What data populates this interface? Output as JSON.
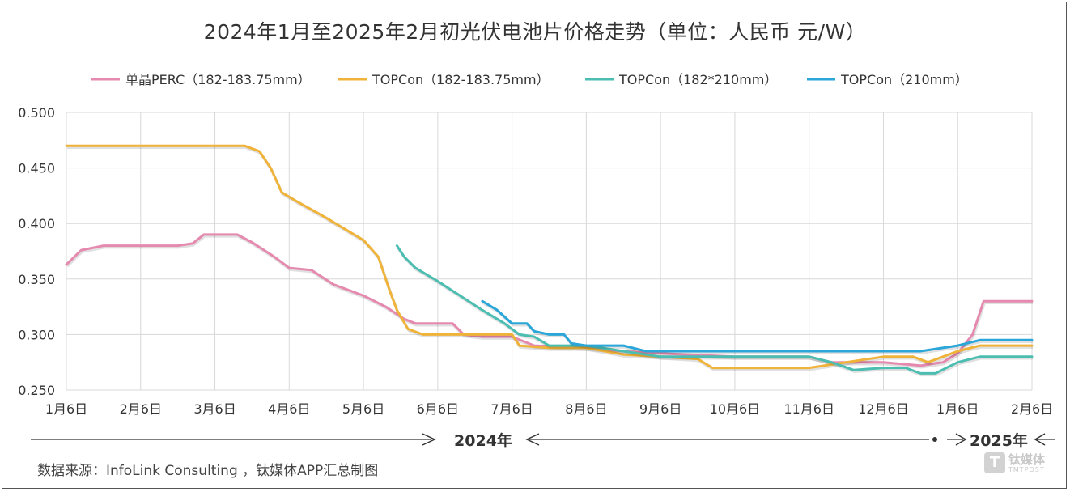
{
  "chart_data": {
    "type": "line",
    "title": "2024年1月至2025年2月初光伏电池片价格走势（单位：人民币 元/W）",
    "xlabel": "",
    "ylabel": "",
    "ylim": [
      0.25,
      0.5
    ],
    "yticks": [
      "0.250",
      "0.300",
      "0.350",
      "0.400",
      "0.450",
      "0.500"
    ],
    "ytick_values": [
      0.25,
      0.3,
      0.35,
      0.4,
      0.45,
      0.5
    ],
    "categories": [
      "1月6日",
      "2月6日",
      "3月6日",
      "4月6日",
      "5月6日",
      "6月6日",
      "7月6日",
      "8月6日",
      "9月6日",
      "10月6日",
      "11月6日",
      "12月6日",
      "1月6日",
      "2月6日"
    ],
    "grid": true,
    "legend_position": "top",
    "series": [
      {
        "name": "单晶PERC（182-183.75mm）",
        "color": "#e58aae",
        "points": [
          [
            0,
            0.363
          ],
          [
            0.2,
            0.376
          ],
          [
            0.5,
            0.38
          ],
          [
            1,
            0.38
          ],
          [
            1.5,
            0.38
          ],
          [
            1.7,
            0.382
          ],
          [
            1.85,
            0.39
          ],
          [
            2,
            0.39
          ],
          [
            2.3,
            0.39
          ],
          [
            2.5,
            0.383
          ],
          [
            2.8,
            0.37
          ],
          [
            3,
            0.36
          ],
          [
            3.3,
            0.358
          ],
          [
            3.6,
            0.345
          ],
          [
            4,
            0.335
          ],
          [
            4.3,
            0.325
          ],
          [
            4.55,
            0.314
          ],
          [
            4.7,
            0.31
          ],
          [
            5,
            0.31
          ],
          [
            5.2,
            0.31
          ],
          [
            5.35,
            0.3
          ],
          [
            5.6,
            0.298
          ],
          [
            6,
            0.298
          ],
          [
            6.3,
            0.29
          ],
          [
            7,
            0.288
          ],
          [
            7.5,
            0.285
          ],
          [
            8,
            0.283
          ],
          [
            9,
            0.28
          ],
          [
            10,
            0.28
          ],
          [
            10.3,
            0.275
          ],
          [
            11,
            0.275
          ],
          [
            11.5,
            0.272
          ],
          [
            11.8,
            0.275
          ],
          [
            12,
            0.283
          ],
          [
            12.2,
            0.3
          ],
          [
            12.35,
            0.33
          ],
          [
            12.6,
            0.33
          ],
          [
            13,
            0.33
          ]
        ]
      },
      {
        "name": "TOPCon（182-183.75mm）",
        "color": "#f0b33a",
        "points": [
          [
            0,
            0.47
          ],
          [
            1,
            0.47
          ],
          [
            2,
            0.47
          ],
          [
            2.4,
            0.47
          ],
          [
            2.6,
            0.465
          ],
          [
            2.75,
            0.45
          ],
          [
            2.9,
            0.428
          ],
          [
            3.1,
            0.42
          ],
          [
            3.5,
            0.405
          ],
          [
            3.8,
            0.393
          ],
          [
            4,
            0.385
          ],
          [
            4.2,
            0.37
          ],
          [
            4.35,
            0.34
          ],
          [
            4.45,
            0.322
          ],
          [
            4.6,
            0.305
          ],
          [
            4.8,
            0.3
          ],
          [
            5,
            0.3
          ],
          [
            5.5,
            0.3
          ],
          [
            6,
            0.3
          ],
          [
            6.1,
            0.29
          ],
          [
            6.5,
            0.288
          ],
          [
            7,
            0.288
          ],
          [
            7.5,
            0.282
          ],
          [
            8,
            0.28
          ],
          [
            8.5,
            0.278
          ],
          [
            8.7,
            0.27
          ],
          [
            9,
            0.27
          ],
          [
            10,
            0.27
          ],
          [
            10.5,
            0.275
          ],
          [
            11,
            0.28
          ],
          [
            11.4,
            0.28
          ],
          [
            11.6,
            0.275
          ],
          [
            12,
            0.285
          ],
          [
            12.3,
            0.29
          ],
          [
            13,
            0.29
          ]
        ]
      },
      {
        "name": "TOPCon（182*210mm）",
        "color": "#4bbdb1",
        "points": [
          [
            4.45,
            0.38
          ],
          [
            4.55,
            0.37
          ],
          [
            4.7,
            0.36
          ],
          [
            5,
            0.348
          ],
          [
            5.3,
            0.335
          ],
          [
            5.6,
            0.322
          ],
          [
            5.9,
            0.31
          ],
          [
            6.1,
            0.3
          ],
          [
            6.3,
            0.298
          ],
          [
            6.5,
            0.29
          ],
          [
            7,
            0.29
          ],
          [
            7.5,
            0.285
          ],
          [
            8,
            0.28
          ],
          [
            9,
            0.28
          ],
          [
            10,
            0.28
          ],
          [
            10.3,
            0.275
          ],
          [
            10.6,
            0.268
          ],
          [
            11,
            0.27
          ],
          [
            11.3,
            0.27
          ],
          [
            11.5,
            0.265
          ],
          [
            11.7,
            0.265
          ],
          [
            12,
            0.275
          ],
          [
            12.3,
            0.28
          ],
          [
            13,
            0.28
          ]
        ]
      },
      {
        "name": "TOPCon（210mm）",
        "color": "#2aa7d8",
        "points": [
          [
            5.6,
            0.33
          ],
          [
            5.8,
            0.322
          ],
          [
            6,
            0.31
          ],
          [
            6.2,
            0.31
          ],
          [
            6.3,
            0.303
          ],
          [
            6.5,
            0.3
          ],
          [
            6.7,
            0.3
          ],
          [
            6.8,
            0.292
          ],
          [
            7,
            0.29
          ],
          [
            7.5,
            0.29
          ],
          [
            7.8,
            0.285
          ],
          [
            8,
            0.285
          ],
          [
            9,
            0.285
          ],
          [
            10,
            0.285
          ],
          [
            11,
            0.285
          ],
          [
            11.5,
            0.285
          ],
          [
            12,
            0.29
          ],
          [
            12.3,
            0.295
          ],
          [
            13,
            0.295
          ]
        ]
      }
    ],
    "year_labels": [
      "2024年",
      "2025年"
    ],
    "source": "数据来源：InfoLink Consulting ，钛媒体APP汇总制图"
  },
  "watermark": {
    "mark": "T",
    "name": "钛媒体",
    "sub": "TMTPOST"
  }
}
